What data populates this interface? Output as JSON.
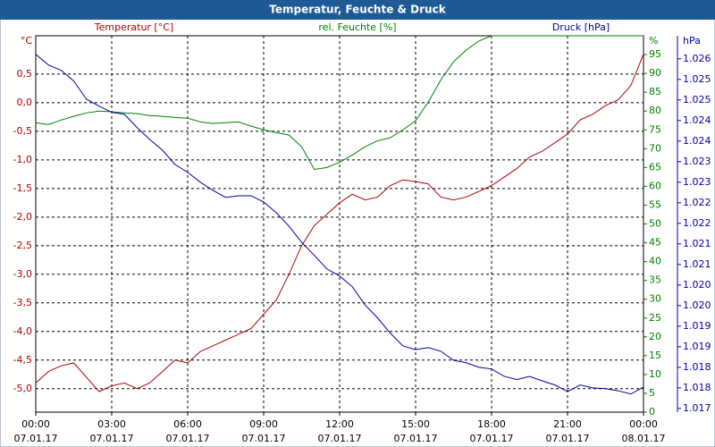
{
  "chart_data": {
    "type": "line",
    "title": "Temperatur, Feuchte & Druck",
    "y_unit": "°C",
    "y2_unit": "%",
    "y3_unit": "hPa",
    "x": [
      0,
      0.5,
      1,
      1.5,
      2,
      2.5,
      3,
      3.5,
      4,
      4.5,
      5,
      5.5,
      6,
      6.5,
      7,
      7.5,
      8,
      8.5,
      9,
      9.5,
      10,
      10.5,
      11,
      11.5,
      12,
      12.5,
      13,
      13.5,
      14,
      14.5,
      15,
      15.5,
      16,
      16.5,
      17,
      17.5,
      18,
      18.5,
      19,
      19.5,
      20,
      20.5,
      21,
      21.5,
      22,
      22.5,
      23,
      23.5,
      24
    ],
    "xlim": [
      0,
      24
    ],
    "xticks": [
      {
        "value": 0,
        "label": "00:00\n07.01.17"
      },
      {
        "value": 3,
        "label": "03:00\n07.01.17"
      },
      {
        "value": 6,
        "label": "06:00\n07.01.17"
      },
      {
        "value": 9,
        "label": "09:00\n07.01.17"
      },
      {
        "value": 12,
        "label": "12:00\n07.01.17"
      },
      {
        "value": 15,
        "label": "15:00\n07.01.17"
      },
      {
        "value": 18,
        "label": "18:00\n07.01.17"
      },
      {
        "value": 21,
        "label": "21:00\n07.01.17"
      },
      {
        "value": 24,
        "label": "00:00\n08.01.17"
      }
    ],
    "ylim": [
      -5.41,
      1.17
    ],
    "yticks": [
      {
        "value": -5,
        "label": "-5,0"
      },
      {
        "value": -4.5,
        "label": "-4,5"
      },
      {
        "value": -4,
        "label": "-4,0"
      },
      {
        "value": -3.5,
        "label": "-3,5"
      },
      {
        "value": -3,
        "label": "-3,0"
      },
      {
        "value": -2.5,
        "label": "-2,5"
      },
      {
        "value": -2,
        "label": "-2,0"
      },
      {
        "value": -1.5,
        "label": "-1,5"
      },
      {
        "value": -1,
        "label": "-1,0"
      },
      {
        "value": -0.5,
        "label": "-0,5"
      },
      {
        "value": 0,
        "label": "0,0"
      },
      {
        "value": 0.5,
        "label": "0,5"
      }
    ],
    "y2lim": [
      0,
      100
    ],
    "y2ticks": [
      0,
      5,
      10,
      15,
      20,
      25,
      30,
      35,
      40,
      45,
      50,
      55,
      60,
      65,
      70,
      75,
      80,
      85,
      90,
      95
    ],
    "y3lim": [
      1.01691,
      1.02606
    ],
    "y3ticks": [
      {
        "value": 1.017,
        "label": "1.017"
      },
      {
        "value": 1.0175,
        "label": "1.018"
      },
      {
        "value": 1.018,
        "label": "1.018"
      },
      {
        "value": 1.0185,
        "label": "1.019"
      },
      {
        "value": 1.019,
        "label": "1.019"
      },
      {
        "value": 1.0195,
        "label": "1.020"
      },
      {
        "value": 1.02,
        "label": "1.020"
      },
      {
        "value": 1.0205,
        "label": "1.021"
      },
      {
        "value": 1.021,
        "label": "1.021"
      },
      {
        "value": 1.0215,
        "label": "1.022"
      },
      {
        "value": 1.022,
        "label": "1.022"
      },
      {
        "value": 1.0225,
        "label": "1.023"
      },
      {
        "value": 1.023,
        "label": "1.023"
      },
      {
        "value": 1.0235,
        "label": "1.024"
      },
      {
        "value": 1.024,
        "label": "1.024"
      },
      {
        "value": 1.0245,
        "label": "1.025"
      },
      {
        "value": 1.025,
        "label": "1.025"
      },
      {
        "value": 1.0255,
        "label": "1.026"
      }
    ],
    "grid": true,
    "series": [
      {
        "name": "Temperatur [°C]",
        "color": "#b00000",
        "axis": "y",
        "values": [
          -4.9,
          -4.7,
          -4.6,
          -4.55,
          -4.8,
          -5.05,
          -4.95,
          -4.9,
          -5.0,
          -4.9,
          -4.7,
          -4.5,
          -4.55,
          -4.35,
          -4.25,
          -4.15,
          -4.05,
          -3.95,
          -3.7,
          -3.45,
          -3.0,
          -2.5,
          -2.15,
          -1.95,
          -1.75,
          -1.6,
          -1.7,
          -1.65,
          -1.45,
          -1.35,
          -1.38,
          -1.42,
          -1.65,
          -1.7,
          -1.65,
          -1.55,
          -1.45,
          -1.3,
          -1.15,
          -0.95,
          -0.85,
          -0.7,
          -0.55,
          -0.3,
          -0.2,
          -0.05,
          0.05,
          0.3,
          0.85
        ]
      },
      {
        "name": "rel. Feuchte [%]",
        "color": "#008000",
        "axis": "y2",
        "values": [
          76.9,
          76.4,
          77.6,
          78.6,
          79.5,
          80,
          79.8,
          79.5,
          79.3,
          78.8,
          78.6,
          78.3,
          78.1,
          77.1,
          76.7,
          76.9,
          77.1,
          76,
          75,
          74.3,
          73.6,
          70.5,
          64.5,
          65,
          66.4,
          68.3,
          70.5,
          72.1,
          72.9,
          75,
          77.4,
          82.4,
          88.3,
          93.1,
          96.2,
          98.6,
          100,
          100,
          100,
          100,
          100,
          100,
          100,
          100,
          100,
          100,
          100,
          100,
          100
        ]
      },
      {
        "name": "Druck [hPa]",
        "color": "#0000a0",
        "axis": "y3",
        "values": [
          1.02561,
          1.02535,
          1.02522,
          1.02496,
          1.02452,
          1.02435,
          1.0242,
          1.02415,
          1.02383,
          1.02354,
          1.02328,
          1.02293,
          1.02274,
          1.0225,
          1.0223,
          1.02213,
          1.02217,
          1.02217,
          1.02202,
          1.02176,
          1.02143,
          1.02104,
          1.02072,
          1.02039,
          1.02022,
          1.01996,
          1.01952,
          1.0192,
          1.01883,
          1.01852,
          1.01843,
          1.01848,
          1.01839,
          1.01817,
          1.01811,
          1.018,
          1.01796,
          1.01778,
          1.0177,
          1.01778,
          1.01767,
          1.01757,
          1.01741,
          1.01757,
          1.0175,
          1.01748,
          1.01743,
          1.01735,
          1.01752
        ]
      }
    ]
  }
}
